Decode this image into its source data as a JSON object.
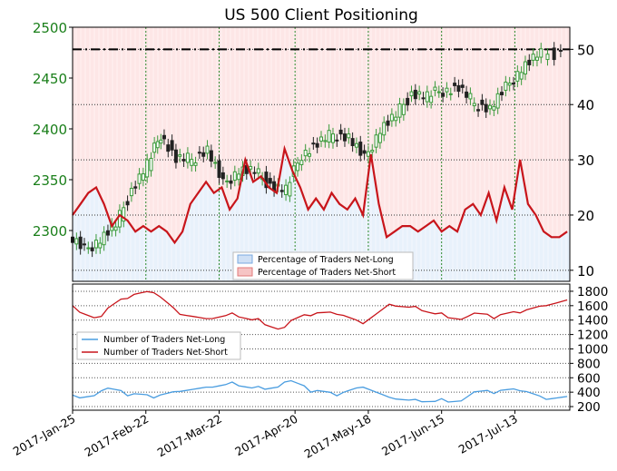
{
  "chart_data": {
    "type": "line",
    "title": "US 500 Client Positioning",
    "x_dates": [
      "2017-Jan-25",
      "2017-Feb-22",
      "2017-Mar-22",
      "2017-Apr-20",
      "2017-May-18",
      "2017-Jun-15",
      "2017-Jul-13"
    ],
    "top_panel": {
      "price_axis": {
        "ticks": [
          "2500",
          "2450",
          "2400",
          "2350",
          "2300"
        ],
        "range": [
          2250,
          2500
        ]
      },
      "pct_axis": {
        "ticks": [
          "50",
          "40",
          "30",
          "20",
          "10"
        ],
        "range": [
          8,
          54
        ]
      },
      "legend": [
        "Percentage of Traders Net-Long",
        "Percentage of Traders Net-Short"
      ],
      "legend_position": "lower-center",
      "reference_level_pct": 50,
      "net_short_pct": [
        {
          "date": "2017-01-25",
          "value": 20
        },
        {
          "date": "2017-01-28",
          "value": 22
        },
        {
          "date": "2017-01-31",
          "value": 24
        },
        {
          "date": "2017-02-03",
          "value": 25
        },
        {
          "date": "2017-02-06",
          "value": 22
        },
        {
          "date": "2017-02-09",
          "value": 18
        },
        {
          "date": "2017-02-12",
          "value": 20
        },
        {
          "date": "2017-02-15",
          "value": 19
        },
        {
          "date": "2017-02-18",
          "value": 17
        },
        {
          "date": "2017-02-21",
          "value": 18
        },
        {
          "date": "2017-02-24",
          "value": 17
        },
        {
          "date": "2017-02-27",
          "value": 18
        },
        {
          "date": "2017-03-02",
          "value": 17
        },
        {
          "date": "2017-03-05",
          "value": 15
        },
        {
          "date": "2017-03-08",
          "value": 17
        },
        {
          "date": "2017-03-11",
          "value": 22
        },
        {
          "date": "2017-03-14",
          "value": 24
        },
        {
          "date": "2017-03-17",
          "value": 26
        },
        {
          "date": "2017-03-20",
          "value": 24
        },
        {
          "date": "2017-03-23",
          "value": 25
        },
        {
          "date": "2017-03-26",
          "value": 21
        },
        {
          "date": "2017-03-29",
          "value": 23
        },
        {
          "date": "2017-04-01",
          "value": 30
        },
        {
          "date": "2017-04-04",
          "value": 26
        },
        {
          "date": "2017-04-07",
          "value": 27
        },
        {
          "date": "2017-04-10",
          "value": 25
        },
        {
          "date": "2017-04-13",
          "value": 24
        },
        {
          "date": "2017-04-16",
          "value": 32
        },
        {
          "date": "2017-04-19",
          "value": 28
        },
        {
          "date": "2017-04-22",
          "value": 25
        },
        {
          "date": "2017-04-25",
          "value": 21
        },
        {
          "date": "2017-04-28",
          "value": 23
        },
        {
          "date": "2017-05-01",
          "value": 21
        },
        {
          "date": "2017-05-04",
          "value": 24
        },
        {
          "date": "2017-05-07",
          "value": 22
        },
        {
          "date": "2017-05-10",
          "value": 21
        },
        {
          "date": "2017-05-13",
          "value": 23
        },
        {
          "date": "2017-05-16",
          "value": 20
        },
        {
          "date": "2017-05-19",
          "value": 31
        },
        {
          "date": "2017-05-22",
          "value": 22
        },
        {
          "date": "2017-05-25",
          "value": 16
        },
        {
          "date": "2017-05-28",
          "value": 17
        },
        {
          "date": "2017-05-31",
          "value": 18
        },
        {
          "date": "2017-06-03",
          "value": 18
        },
        {
          "date": "2017-06-06",
          "value": 17
        },
        {
          "date": "2017-06-09",
          "value": 18
        },
        {
          "date": "2017-06-12",
          "value": 19
        },
        {
          "date": "2017-06-15",
          "value": 17
        },
        {
          "date": "2017-06-18",
          "value": 18
        },
        {
          "date": "2017-06-21",
          "value": 17
        },
        {
          "date": "2017-06-24",
          "value": 21
        },
        {
          "date": "2017-06-27",
          "value": 22
        },
        {
          "date": "2017-06-30",
          "value": 20
        },
        {
          "date": "2017-07-03",
          "value": 24
        },
        {
          "date": "2017-07-06",
          "value": 19
        },
        {
          "date": "2017-07-09",
          "value": 25
        },
        {
          "date": "2017-07-12",
          "value": 21
        },
        {
          "date": "2017-07-15",
          "value": 30
        },
        {
          "date": "2017-07-18",
          "value": 22
        },
        {
          "date": "2017-07-21",
          "value": 20
        },
        {
          "date": "2017-07-24",
          "value": 17
        },
        {
          "date": "2017-07-27",
          "value": 16
        },
        {
          "date": "2017-07-30",
          "value": 16
        },
        {
          "date": "2017-08-02",
          "value": 17
        }
      ],
      "price_closes": [
        {
          "date": "2017-01-25",
          "value": 2295
        },
        {
          "date": "2017-01-31",
          "value": 2280
        },
        {
          "date": "2017-02-06",
          "value": 2292
        },
        {
          "date": "2017-02-12",
          "value": 2305
        },
        {
          "date": "2017-02-18",
          "value": 2340
        },
        {
          "date": "2017-02-24",
          "value": 2365
        },
        {
          "date": "2017-03-01",
          "value": 2395
        },
        {
          "date": "2017-03-07",
          "value": 2370
        },
        {
          "date": "2017-03-13",
          "value": 2370
        },
        {
          "date": "2017-03-19",
          "value": 2380
        },
        {
          "date": "2017-03-25",
          "value": 2345
        },
        {
          "date": "2017-03-31",
          "value": 2360
        },
        {
          "date": "2017-04-06",
          "value": 2358
        },
        {
          "date": "2017-04-12",
          "value": 2345
        },
        {
          "date": "2017-04-18",
          "value": 2340
        },
        {
          "date": "2017-04-24",
          "value": 2375
        },
        {
          "date": "2017-04-30",
          "value": 2385
        },
        {
          "date": "2017-05-06",
          "value": 2395
        },
        {
          "date": "2017-05-12",
          "value": 2392
        },
        {
          "date": "2017-05-18",
          "value": 2370
        },
        {
          "date": "2017-05-24",
          "value": 2400
        },
        {
          "date": "2017-05-30",
          "value": 2413
        },
        {
          "date": "2017-06-05",
          "value": 2435
        },
        {
          "date": "2017-06-11",
          "value": 2432
        },
        {
          "date": "2017-06-17",
          "value": 2438
        },
        {
          "date": "2017-06-23",
          "value": 2440
        },
        {
          "date": "2017-06-29",
          "value": 2425
        },
        {
          "date": "2017-07-05",
          "value": 2420
        },
        {
          "date": "2017-07-11",
          "value": 2440
        },
        {
          "date": "2017-07-17",
          "value": 2460
        },
        {
          "date": "2017-07-23",
          "value": 2472
        },
        {
          "date": "2017-08-02",
          "value": 2475
        }
      ]
    },
    "bottom_panel": {
      "axis": {
        "ticks": [
          "1800",
          "1600",
          "1400",
          "1200",
          "1000",
          "800",
          "600",
          "400",
          "200"
        ],
        "range": [
          150,
          1900
        ]
      },
      "legend": [
        "Number of Traders Net-Long",
        "Number of Traders Net-Short"
      ],
      "legend_position": "center-left",
      "net_long": [
        {
          "date": "2017-01-25",
          "value": 360
        },
        {
          "date": "2017-02-05",
          "value": 420
        },
        {
          "date": "2017-02-15",
          "value": 350
        },
        {
          "date": "2017-02-25",
          "value": 320
        },
        {
          "date": "2017-03-07",
          "value": 410
        },
        {
          "date": "2017-03-17",
          "value": 470
        },
        {
          "date": "2017-03-27",
          "value": 540
        },
        {
          "date": "2017-04-06",
          "value": 480
        },
        {
          "date": "2017-04-16",
          "value": 540
        },
        {
          "date": "2017-04-26",
          "value": 400
        },
        {
          "date": "2017-05-06",
          "value": 350
        },
        {
          "date": "2017-05-16",
          "value": 470
        },
        {
          "date": "2017-05-26",
          "value": 330
        },
        {
          "date": "2017-06-05",
          "value": 300
        },
        {
          "date": "2017-06-15",
          "value": 310
        },
        {
          "date": "2017-06-25",
          "value": 340
        },
        {
          "date": "2017-07-05",
          "value": 380
        },
        {
          "date": "2017-07-15",
          "value": 420
        },
        {
          "date": "2017-07-25",
          "value": 300
        },
        {
          "date": "2017-08-02",
          "value": 340
        }
      ],
      "net_short": [
        {
          "date": "2017-01-25",
          "value": 1600
        },
        {
          "date": "2017-02-05",
          "value": 1450
        },
        {
          "date": "2017-02-15",
          "value": 1700
        },
        {
          "date": "2017-02-25",
          "value": 1780
        },
        {
          "date": "2017-03-07",
          "value": 1480
        },
        {
          "date": "2017-03-17",
          "value": 1420
        },
        {
          "date": "2017-03-27",
          "value": 1500
        },
        {
          "date": "2017-04-06",
          "value": 1420
        },
        {
          "date": "2017-04-16",
          "value": 1300
        },
        {
          "date": "2017-04-26",
          "value": 1460
        },
        {
          "date": "2017-05-06",
          "value": 1480
        },
        {
          "date": "2017-05-16",
          "value": 1350
        },
        {
          "date": "2017-05-26",
          "value": 1620
        },
        {
          "date": "2017-06-05",
          "value": 1590
        },
        {
          "date": "2017-06-15",
          "value": 1500
        },
        {
          "date": "2017-06-25",
          "value": 1450
        },
        {
          "date": "2017-07-05",
          "value": 1420
        },
        {
          "date": "2017-07-15",
          "value": 1500
        },
        {
          "date": "2017-07-25",
          "value": 1600
        },
        {
          "date": "2017-08-02",
          "value": 1680
        }
      ]
    },
    "colors": {
      "net_short_line": "#c8151b",
      "net_long_line": "#4a9de0",
      "short_fill": "#fde6e6",
      "long_fill": "#e8f1fb",
      "price_up": "#2e8b2e",
      "axis_green": "#1a7f1a"
    },
    "grid": true
  }
}
